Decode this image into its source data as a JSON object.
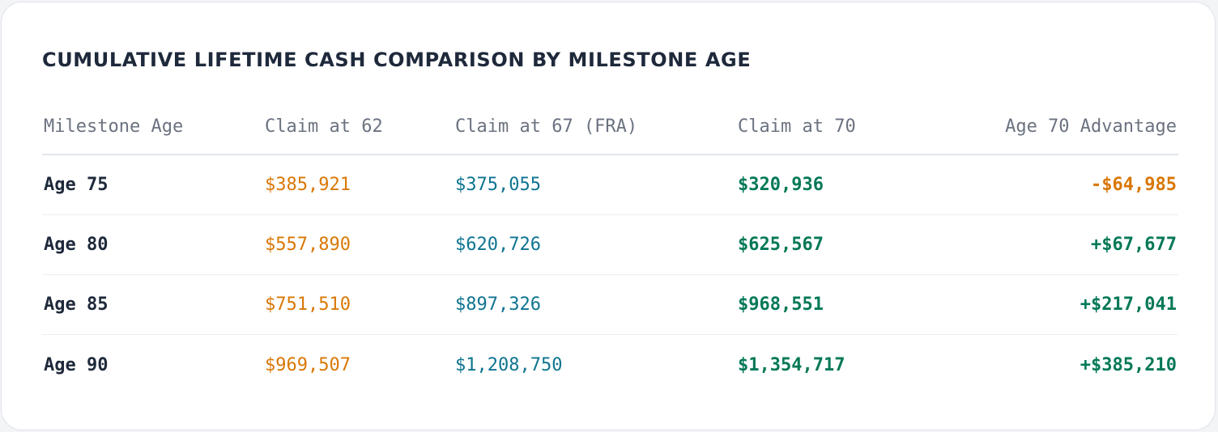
{
  "title": "CUMULATIVE LIFETIME CASH COMPARISON BY MILESTONE AGE",
  "columns": {
    "age": "Milestone Age",
    "claim62": "Claim at 62",
    "claim67": "Claim at 67 (FRA)",
    "claim70": "Claim at 70",
    "advantage": "Age 70 Advantage"
  },
  "rows": [
    {
      "age": "Age 75",
      "claim62": "$385,921",
      "claim67": "$375,055",
      "claim70": "$320,936",
      "advantage": "-$64,985"
    },
    {
      "age": "Age 80",
      "claim62": "$557,890",
      "claim67": "$620,726",
      "claim70": "$625,567",
      "advantage": "+$67,677"
    },
    {
      "age": "Age 85",
      "claim62": "$751,510",
      "claim67": "$897,326",
      "claim70": "$968,551",
      "advantage": "+$217,041"
    },
    {
      "age": "Age 90",
      "claim62": "$969,507",
      "claim67": "$1,208,750",
      "claim70": "$1,354,717",
      "advantage": "+$385,210"
    }
  ],
  "colors": {
    "claim62": "#d97706",
    "claim67": "#0e7490",
    "claim70": "#047857",
    "advantage_positive": "#047857",
    "advantage_negative": "#d97706"
  }
}
